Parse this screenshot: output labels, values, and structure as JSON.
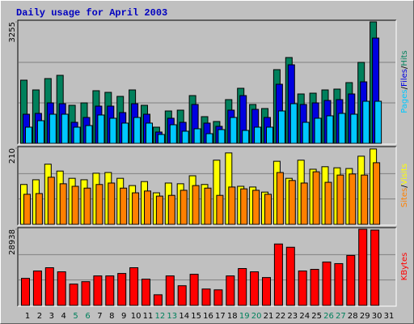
{
  "title": "Daily usage for April 2003",
  "categories": [
    "1",
    "2",
    "3",
    "4",
    "5",
    "6",
    "7",
    "8",
    "9",
    "10",
    "11",
    "12",
    "13",
    "14",
    "15",
    "16",
    "17",
    "18",
    "19",
    "20",
    "21",
    "22",
    "23",
    "24",
    "25",
    "26",
    "27",
    "28",
    "29",
    "30",
    "31"
  ],
  "category_colors": [
    "#000000",
    "#000000",
    "#000000",
    "#000000",
    "#00805c",
    "#00805c",
    "#000000",
    "#000000",
    "#000000",
    "#000000",
    "#000000",
    "#00805c",
    "#00805c",
    "#000000",
    "#000000",
    "#000000",
    "#000000",
    "#000000",
    "#00805c",
    "#00805c",
    "#000000",
    "#000000",
    "#000000",
    "#000000",
    "#000000",
    "#00805c",
    "#00805c",
    "#000000",
    "#000000",
    "#000000",
    "#000000"
  ],
  "legend_separator": "/",
  "chart_data": [
    {
      "type": "bar",
      "ylim": [
        0,
        3255
      ],
      "yticks": [
        3255
      ],
      "series": [
        {
          "name": "Hits",
          "color": "#00805c",
          "values": [
            1693,
            1432,
            1736,
            1823,
            1020,
            1085,
            1411,
            1367,
            1259,
            1432,
            1020,
            434,
            868,
            890,
            1280,
            716,
            586,
            1172,
            1476,
            1042,
            933,
            1975,
            2300,
            1324,
            1345,
            1432,
            1454,
            1628,
            2170,
            3255,
            null
          ]
        },
        {
          "name": "Files",
          "color": "#0000e0",
          "values": [
            781,
            803,
            1085,
            1063,
            564,
            694,
            998,
            998,
            825,
            1063,
            781,
            304,
            673,
            564,
            1042,
            543,
            456,
            890,
            1280,
            911,
            694,
            1584,
            2105,
            1042,
            1085,
            1150,
            1172,
            1324,
            1649,
            2821,
            null
          ]
        },
        {
          "name": "Pages",
          "color": "#00c8ff",
          "values": [
            434,
            608,
            781,
            781,
            434,
            477,
            760,
            673,
            543,
            694,
            543,
            239,
            499,
            326,
            391,
            260,
            369,
            694,
            347,
            434,
            434,
            868,
            1063,
            564,
            673,
            738,
            803,
            781,
            1128,
            1128,
            null
          ]
        }
      ]
    },
    {
      "type": "bar",
      "ylim": [
        0,
        210
      ],
      "yticks": [
        210
      ],
      "series": [
        {
          "name": "Visits",
          "color": "#ffff00",
          "values": [
            110,
            123,
            166,
            147,
            127,
            123,
            141,
            143,
            127,
            107,
            118,
            87,
            114,
            112,
            134,
            110,
            177,
            197,
            105,
            103,
            89,
            174,
            127,
            177,
            152,
            159,
            156,
            154,
            188,
            208,
            null
          ]
        },
        {
          "name": "Sites",
          "color": "#ff8000",
          "values": [
            83,
            85,
            130,
            112,
            105,
            100,
            110,
            114,
            100,
            87,
            92,
            78,
            80,
            94,
            107,
            100,
            80,
            103,
            98,
            94,
            83,
            143,
            121,
            114,
            145,
            116,
            136,
            139,
            136,
            170,
            null
          ]
        }
      ]
    },
    {
      "type": "bar",
      "ylim": [
        0,
        28938
      ],
      "yticks": [
        28938
      ],
      "series": [
        {
          "name": "KBytes",
          "color": "#ff0000",
          "values": [
            10270,
            13070,
            14310,
            12760,
            8090,
            9020,
            11200,
            11200,
            12130,
            14310,
            9960,
            4040,
            11200,
            7470,
            11820,
            6220,
            5910,
            11200,
            14000,
            12760,
            10580,
            23330,
            22090,
            13070,
            13690,
            16490,
            15870,
            18980,
            28938,
            28620,
            null
          ]
        }
      ]
    }
  ]
}
